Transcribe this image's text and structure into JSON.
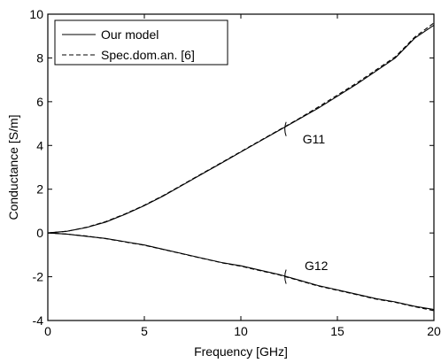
{
  "chart_data": {
    "type": "line",
    "title": "",
    "xlabel": "Frequency [GHz]",
    "ylabel": "Conductance [S/m]",
    "xlim": [
      0,
      20
    ],
    "ylim": [
      -4,
      10
    ],
    "x_ticks": [
      0,
      5,
      10,
      15,
      20
    ],
    "y_ticks": [
      -4,
      -2,
      0,
      2,
      4,
      6,
      8,
      10
    ],
    "x_tick_labels": [
      "0",
      "5",
      "10",
      "15",
      "20"
    ],
    "y_tick_labels": [
      "-4",
      "-2",
      "0",
      "2",
      "4",
      "6",
      "8",
      "10"
    ],
    "grid": false,
    "legend": {
      "placement": "top-left",
      "entries": [
        {
          "name": "Our model",
          "style": "solid"
        },
        {
          "name": "Spec.dom.an. [6]",
          "style": "dashed"
        }
      ]
    },
    "series": [
      {
        "name": "Our model",
        "style": "solid",
        "curve": "G11",
        "x": [
          0,
          1,
          2,
          3,
          4,
          5,
          6,
          7,
          8,
          9,
          10,
          11,
          12,
          13,
          14,
          15,
          16,
          17,
          18,
          19,
          20
        ],
        "y": [
          0.0,
          0.08,
          0.25,
          0.5,
          0.85,
          1.25,
          1.7,
          2.2,
          2.7,
          3.2,
          3.7,
          4.2,
          4.7,
          5.2,
          5.7,
          6.25,
          6.8,
          7.4,
          8.0,
          8.9,
          9.5
        ]
      },
      {
        "name": "Spec.dom.an. [6]",
        "style": "dashed",
        "curve": "G11",
        "x": [
          0,
          1,
          2,
          3,
          4,
          5,
          6,
          7,
          8,
          9,
          10,
          11,
          12,
          13,
          14,
          15,
          16,
          17,
          18,
          19,
          20
        ],
        "y": [
          0.0,
          0.08,
          0.26,
          0.52,
          0.87,
          1.27,
          1.72,
          2.22,
          2.72,
          3.22,
          3.72,
          4.22,
          4.72,
          5.22,
          5.75,
          6.3,
          6.85,
          7.45,
          8.05,
          8.95,
          9.6
        ]
      },
      {
        "name": "Our model",
        "style": "solid",
        "curve": "G12",
        "x": [
          0,
          1,
          2,
          3,
          4,
          5,
          6,
          7,
          8,
          9,
          10,
          11,
          12,
          13,
          14,
          15,
          16,
          17,
          18,
          19,
          20
        ],
        "y": [
          0.0,
          -0.05,
          -0.15,
          -0.25,
          -0.4,
          -0.55,
          -0.75,
          -0.95,
          -1.15,
          -1.35,
          -1.5,
          -1.7,
          -1.9,
          -2.15,
          -2.4,
          -2.6,
          -2.8,
          -3.0,
          -3.15,
          -3.35,
          -3.5
        ]
      },
      {
        "name": "Spec.dom.an. [6]",
        "style": "dashed",
        "curve": "G12",
        "x": [
          0,
          1,
          2,
          3,
          4,
          5,
          6,
          7,
          8,
          9,
          10,
          11,
          12,
          13,
          14,
          15,
          16,
          17,
          18,
          19,
          20
        ],
        "y": [
          0.0,
          -0.05,
          -0.14,
          -0.26,
          -0.41,
          -0.56,
          -0.76,
          -0.96,
          -1.16,
          -1.36,
          -1.52,
          -1.72,
          -1.92,
          -2.17,
          -2.42,
          -2.62,
          -2.82,
          -3.02,
          -3.17,
          -3.37,
          -3.55
        ]
      }
    ],
    "annotations": [
      {
        "text": "G11",
        "x": 13.2,
        "y": 4.3,
        "points_to": [
          12.3,
          4.75
        ]
      },
      {
        "text": "G12",
        "x": 13.3,
        "y": -1.5,
        "points_to": [
          12.3,
          -2.0
        ]
      }
    ]
  }
}
